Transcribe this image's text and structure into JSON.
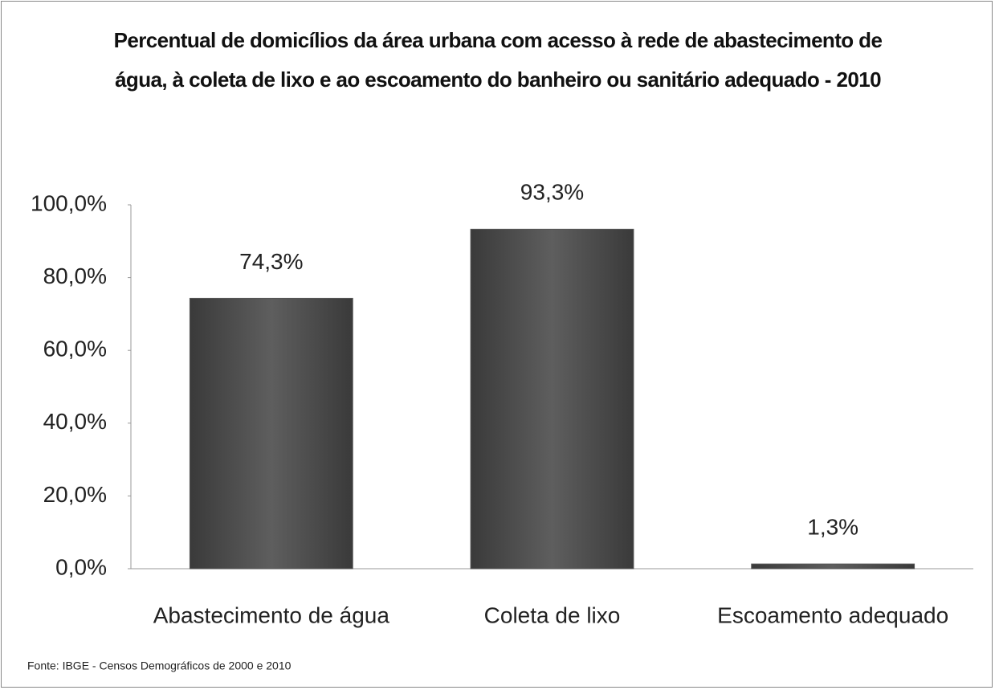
{
  "chart_data": {
    "type": "bar",
    "title": "Percentual de domicílios da área urbana com acesso à rede de abastecimento de água, à coleta de lixo e ao escoamento do banheiro ou sanitário adequado - 2010",
    "categories": [
      "Abastecimento de água",
      "Coleta de lixo",
      "Escoamento adequado"
    ],
    "values": [
      74.3,
      93.3,
      1.3
    ],
    "value_labels": [
      "74,3%",
      "93,3%",
      "1,3%"
    ],
    "color": "#555555",
    "ylim": [
      0,
      100
    ],
    "yticks": [
      {
        "value": 0,
        "label": "0,0%"
      },
      {
        "value": 20,
        "label": "20,0%"
      },
      {
        "value": 40,
        "label": "40,0%"
      },
      {
        "value": 60,
        "label": "60,0%"
      },
      {
        "value": 80,
        "label": "80,0%"
      },
      {
        "value": 100,
        "label": "100,0%"
      }
    ],
    "grid": false,
    "source": "Fonte: IBGE - Censos Demográficos de 2000 e 2010"
  }
}
